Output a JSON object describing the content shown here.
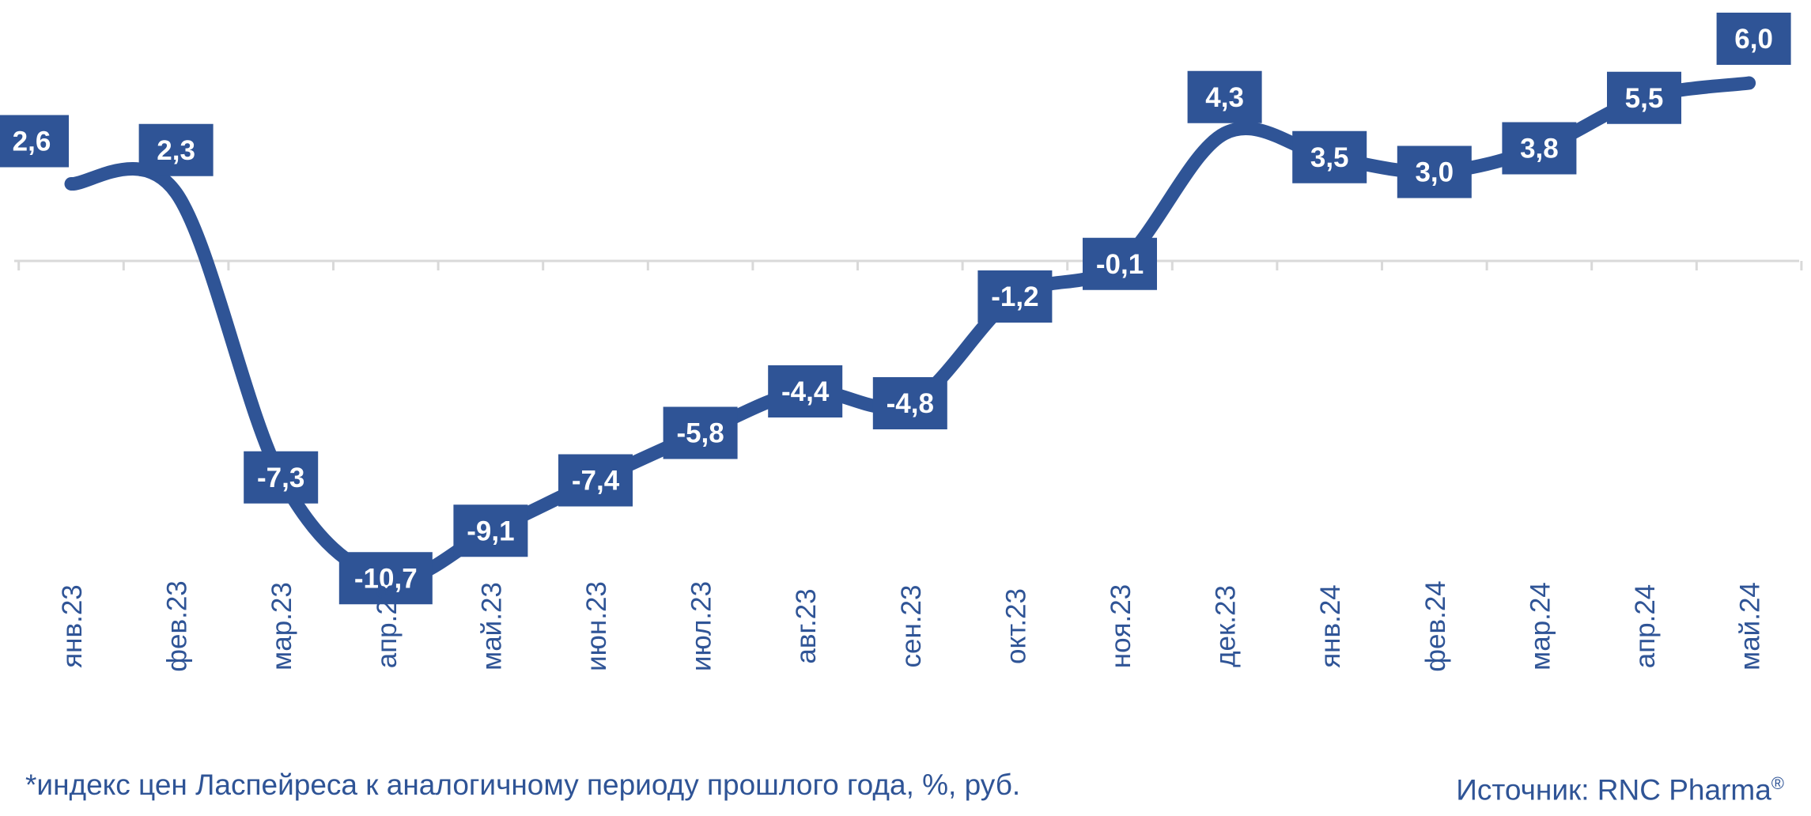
{
  "chart_data": {
    "type": "line",
    "categories": [
      "янв.23",
      "фев.23",
      "мар.23",
      "апр.23",
      "май.23",
      "июн.23",
      "июл.23",
      "авг.23",
      "сен.23",
      "окт.23",
      "ноя.23",
      "дек.23",
      "янв.24",
      "фев.24",
      "мар.24",
      "апр.24",
      "май.24"
    ],
    "values": [
      2.6,
      2.3,
      -7.3,
      -10.7,
      -9.1,
      -7.4,
      -5.8,
      -4.4,
      -4.8,
      -1.2,
      -0.1,
      4.3,
      3.5,
      3.0,
      3.8,
      5.5,
      6.0
    ],
    "value_labels": [
      "2,6",
      "2,3",
      "-7,3",
      "-10,7",
      "-9,1",
      "-7,4",
      "-5,8",
      "-4,4",
      "-4,8",
      "-1,2",
      "-0,1",
      "4,3",
      "3,5",
      "3,0",
      "3,8",
      "5,5",
      "6,0"
    ],
    "ylim": [
      -12,
      7
    ],
    "grid": false,
    "legend": "none",
    "colors": {
      "line": "#2F5496",
      "axis": "#D9D9D9",
      "label_bg": "#2F5496",
      "label_text": "#FFFFFF",
      "tick_text": "#2F5496"
    }
  },
  "footnote": "*индекс цен Ласпейреса к аналогичному периоду прошлого года, %, руб.",
  "source": {
    "label": "Источник: RNC Pharma",
    "mark": "®"
  }
}
